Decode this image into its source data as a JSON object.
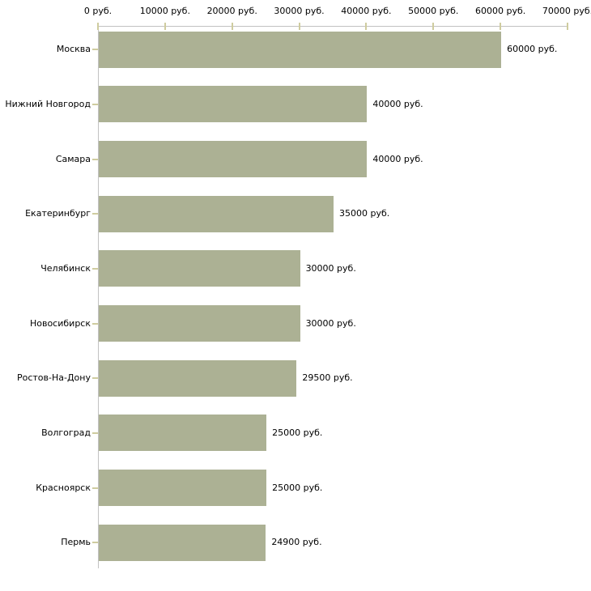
{
  "chart_data": {
    "type": "bar",
    "orientation": "horizontal",
    "title": "",
    "xlabel": "",
    "ylabel": "",
    "unit": "руб.",
    "grid": "off",
    "legend": "none",
    "categories": [
      "Москва",
      "Нижний Новгород",
      "Самара",
      "Екатеринбург",
      "Челябинск",
      "Новосибирск",
      "Ростов-На-Дону",
      "Волгоград",
      "Красноярск",
      "Пермь"
    ],
    "values": [
      60000,
      40000,
      40000,
      35000,
      30000,
      30000,
      29500,
      25000,
      25000,
      24900
    ],
    "value_labels": [
      "60000 руб.",
      "40000 руб.",
      "40000 руб.",
      "35000 руб.",
      "30000 руб.",
      "30000 руб.",
      "29500 руб.",
      "25000 руб.",
      "25000 руб.",
      "24900 руб."
    ],
    "x_axis": {
      "position": "top",
      "min": 0,
      "max": 70000,
      "tick_interval": 10000,
      "tick_labels": [
        "0 руб.",
        "10000 руб.",
        "20000 руб.",
        "30000 руб.",
        "40000 руб.",
        "50000 руб.",
        "60000 руб.",
        "70000 руб."
      ]
    },
    "colors": {
      "bar": "#acb194",
      "axis_line": "#c2c2c2",
      "tick_mark": "#cfcc9f",
      "text": "#000000",
      "background": "#ffffff"
    }
  }
}
